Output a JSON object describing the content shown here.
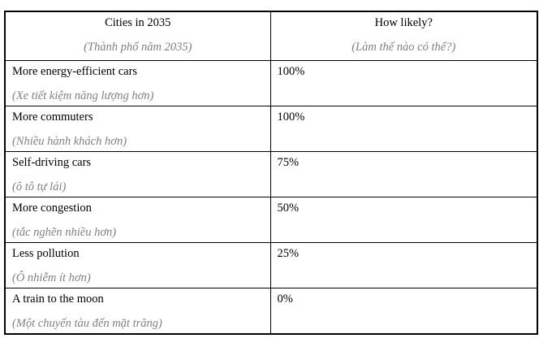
{
  "table": {
    "colors": {
      "text": "#000000",
      "translation_text": "#808080",
      "border": "#000000",
      "background": "#ffffff"
    },
    "header": {
      "col1_en": "Cities in 2035",
      "col1_vi": "(Thành phố năm 2035)",
      "col2_en": "How likely?",
      "col2_vi": "(Làm thế nào có thể?)"
    },
    "rows": [
      {
        "en": "More energy-efficient cars",
        "vi": "(Xe tiết kiệm năng lượng hơn)",
        "likelihood": "100%"
      },
      {
        "en": "More commuters",
        "vi": "(Nhiều hành khách hơn)",
        "likelihood": "100%"
      },
      {
        "en": "Self-driving cars",
        "vi": "(ô tô tự lái)",
        "likelihood": "75%"
      },
      {
        "en": "More congestion",
        "vi": "(tắc nghẽn nhiều hơn)",
        "likelihood": "50%"
      },
      {
        "en": "Less pollution",
        "vi": "(Ô nhiễm ít hơn)",
        "likelihood": "25%"
      },
      {
        "en": "A train to the moon",
        "vi": "(Một chuyến tàu đến mặt trăng)",
        "likelihood": "0%"
      }
    ]
  }
}
